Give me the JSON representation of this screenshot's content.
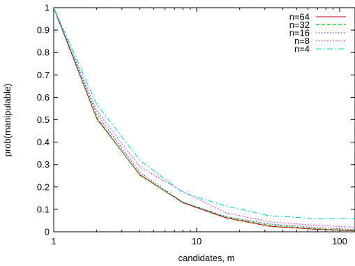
{
  "chart_data": {
    "type": "line",
    "title": "",
    "xlabel": "candidates, m",
    "ylabel": "prob(manipulable)",
    "xscale": "log",
    "xlim": [
      1,
      128
    ],
    "ylim": [
      0,
      1
    ],
    "x_tick_labels": [
      "1",
      "10",
      "100"
    ],
    "x_tick_values": [
      1,
      10,
      100
    ],
    "y_tick_labels": [
      "0",
      "0.1",
      "0.2",
      "0.3",
      "0.4",
      "0.5",
      "0.6",
      "0.7",
      "0.8",
      "0.9",
      "1"
    ],
    "y_tick_values": [
      0,
      0.1,
      0.2,
      0.3,
      0.4,
      0.5,
      0.6,
      0.7,
      0.8,
      0.9,
      1
    ],
    "grid": false,
    "legend_position": "top-right",
    "x": [
      1,
      2,
      4,
      8,
      16,
      32,
      64,
      128
    ],
    "series": [
      {
        "name": "n=64",
        "color": "#cc0000",
        "dash": "solid",
        "values": [
          1.0,
          0.505,
          0.255,
          0.13,
          0.062,
          0.025,
          0.012,
          0.004
        ]
      },
      {
        "name": "n=32",
        "color": "#00bb00",
        "dash": "dashed",
        "values": [
          1.0,
          0.51,
          0.252,
          0.132,
          0.065,
          0.03,
          0.015,
          0.006
        ]
      },
      {
        "name": "n=16",
        "color": "#1a1acc",
        "dash": "dotted",
        "values": [
          1.0,
          0.525,
          0.265,
          0.132,
          0.068,
          0.035,
          0.02,
          0.01
        ]
      },
      {
        "name": "n=8",
        "color": "#e000e0",
        "dash": "dotted",
        "values": [
          1.0,
          0.54,
          0.29,
          0.18,
          0.085,
          0.045,
          0.03,
          0.02
        ]
      },
      {
        "name": "n=4",
        "color": "#00cccc",
        "dash": "dashdot",
        "values": [
          1.0,
          0.57,
          0.32,
          0.175,
          0.115,
          0.072,
          0.06,
          0.06
        ]
      }
    ]
  }
}
